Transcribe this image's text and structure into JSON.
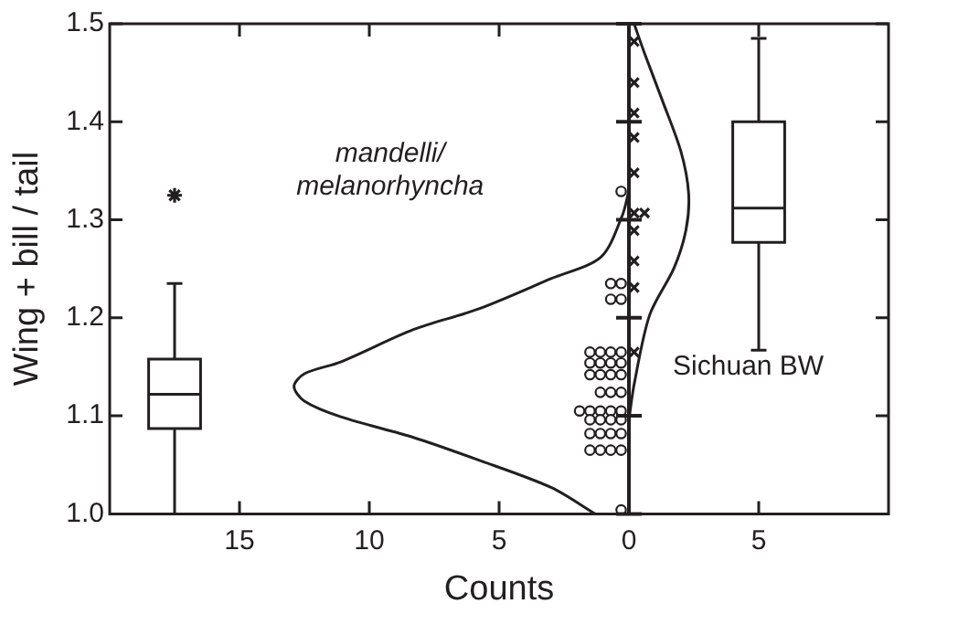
{
  "chart_data": {
    "type": "scatter",
    "xlabel": "Counts",
    "ylabel": "Wing + bill / tail",
    "xlim": [
      -20,
      10
    ],
    "xticks": [
      {
        "value": -15,
        "label": "15"
      },
      {
        "value": -10,
        "label": "10"
      },
      {
        "value": -5,
        "label": "5"
      },
      0,
      5
    ],
    "ylim": [
      1.0,
      1.5
    ],
    "yticks": [
      {
        "value": 1.0,
        "label": "1.0"
      },
      {
        "value": 1.1,
        "label": "1.1"
      },
      {
        "value": 1.2,
        "label": "1.2"
      },
      {
        "value": 1.3,
        "label": "1.3"
      },
      {
        "value": 1.4,
        "label": "1.4"
      },
      {
        "value": 1.5,
        "label": "1.5"
      }
    ],
    "grid": false,
    "legend": false,
    "ref_lines": [
      {
        "axis": "x",
        "value": 0,
        "color": "#231f20"
      }
    ],
    "annotations": [
      "mandelli/ melanorhyncha",
      "Sichuan BW"
    ],
    "series": [
      {
        "type": "box",
        "color": "#231f20",
        "marker": "star",
        "x": [
          -17.5,
          5
        ],
        "boxes": [
          {
            "low": 1.0,
            "q1": 1.087,
            "median": 1.122,
            "q3": 1.158,
            "high": 1.235,
            "outliers": [
              1.325
            ]
          },
          {
            "low": 1.167,
            "q1": 1.277,
            "median": 1.312,
            "q3": 1.4,
            "high": 1.485
          }
        ]
      },
      {
        "type": "line",
        "color": "#231f20",
        "marker": "none",
        "x": [
          -1.3,
          -3.0,
          -5.8,
          -8.3,
          -11.1,
          -12.5,
          -12.9,
          -12.5,
          -11.1,
          -8.3,
          -5.8,
          -3.0,
          -1.08,
          -0.26,
          0
        ],
        "values": [
          1.0,
          1.027,
          1.055,
          1.078,
          1.099,
          1.115,
          1.13,
          1.143,
          1.155,
          1.188,
          1.209,
          1.24,
          1.262,
          1.304,
          1.33
        ]
      },
      {
        "type": "line",
        "color": "#231f20",
        "marker": "none",
        "x": [
          0,
          0.2,
          0.8,
          1.74,
          2.2,
          2.3,
          2.0,
          1.27,
          0.6,
          0.2
        ],
        "values": [
          1.096,
          1.132,
          1.203,
          1.251,
          1.29,
          1.327,
          1.37,
          1.423,
          1.47,
          1.5
        ]
      },
      {
        "type": "scatter",
        "color": "#231f20",
        "marker": "circle",
        "x": [
          -0.3,
          -0.3,
          -0.7,
          -0.3,
          -0.7,
          -0.3,
          -0.7,
          -1.1,
          -1.5,
          -0.3,
          -0.7,
          -1.1,
          -1.5,
          -0.3,
          -0.7,
          -1.1,
          -1.5,
          -0.3,
          -0.7,
          -1.1,
          -0.3,
          -0.7,
          -1.1,
          -1.5,
          -1.9,
          -0.3,
          -0.7,
          -1.1,
          -1.5,
          -0.3,
          -0.7,
          -1.1,
          -1.5,
          -0.3,
          -0.7,
          -1.1,
          -1.5,
          -0.3
        ],
        "values": [
          1.329,
          1.235,
          1.235,
          1.219,
          1.219,
          1.165,
          1.165,
          1.165,
          1.165,
          1.154,
          1.154,
          1.154,
          1.154,
          1.142,
          1.142,
          1.142,
          1.142,
          1.124,
          1.124,
          1.124,
          1.105,
          1.105,
          1.105,
          1.105,
          1.105,
          1.096,
          1.096,
          1.096,
          1.096,
          1.082,
          1.082,
          1.082,
          1.082,
          1.065,
          1.065,
          1.065,
          1.065,
          1.004
        ]
      },
      {
        "type": "scatter",
        "color": "#231f20",
        "marker": "cross",
        "x": [
          0.2,
          0.2,
          0.2,
          0.2,
          0.2,
          0.2,
          0.6,
          0.2,
          0.2,
          0.2,
          0.2
        ],
        "values": [
          1.482,
          1.44,
          1.409,
          1.384,
          1.348,
          1.307,
          1.307,
          1.289,
          1.258,
          1.231,
          1.165
        ]
      }
    ]
  }
}
